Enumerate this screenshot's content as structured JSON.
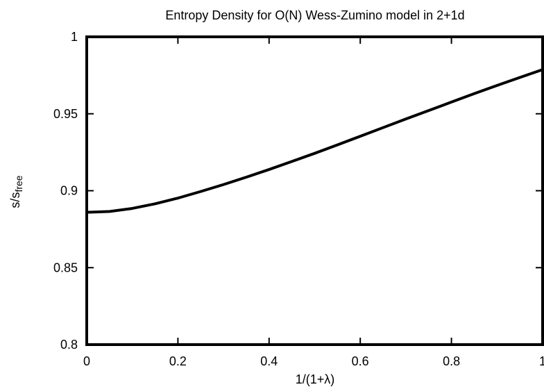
{
  "chart_data": {
    "type": "line",
    "title": "Entropy Density for O(N) Wess-Zumino model in 2+1d",
    "xlabel": "1/(1+λ)",
    "ylabel": {
      "base": "s/s",
      "subscript": "free"
    },
    "xlim": [
      0,
      1
    ],
    "ylim": [
      0.8,
      1.0
    ],
    "x_ticks": [
      0,
      0.2,
      0.4,
      0.6,
      0.8,
      1
    ],
    "x_tick_labels": [
      "0",
      "0.2",
      "0.4",
      "0.6",
      "0.8",
      "1"
    ],
    "y_ticks": [
      0.8,
      0.85,
      0.9,
      0.95,
      1.0
    ],
    "y_tick_labels": [
      "0.8",
      "0.85",
      "0.9",
      "0.95",
      "1"
    ],
    "grid": false,
    "series": [
      {
        "color": "#000000",
        "x": [
          0,
          0.05,
          0.1,
          0.15,
          0.2,
          0.25,
          0.3,
          0.35,
          0.4,
          0.45,
          0.5,
          0.55,
          0.6,
          0.65,
          0.7,
          0.75,
          0.8,
          0.85,
          0.9,
          0.95,
          1.0
        ],
        "y": [
          0.886,
          0.8865,
          0.8885,
          0.8915,
          0.8952,
          0.8995,
          0.904,
          0.9088,
          0.9138,
          0.919,
          0.9243,
          0.9298,
          0.9354,
          0.941,
          0.9466,
          0.9521,
          0.9576,
          0.9631,
          0.9684,
          0.9736,
          0.9787
        ]
      }
    ]
  }
}
